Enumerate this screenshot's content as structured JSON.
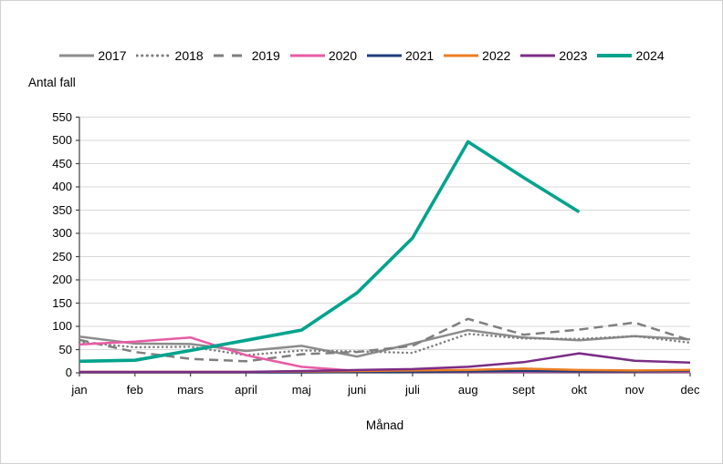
{
  "page": {
    "background_color": "#ffffff",
    "border_color": "#d2d2d2"
  },
  "chart_data": {
    "type": "line",
    "title": "",
    "ylabel": "Antal fall",
    "xlabel": "Månad",
    "ylim": [
      0,
      550
    ],
    "ytick_step": 50,
    "yticks": [
      0,
      50,
      100,
      150,
      200,
      250,
      300,
      350,
      400,
      450,
      500,
      550
    ],
    "categories": [
      "jan",
      "feb",
      "mars",
      "april",
      "maj",
      "juni",
      "juli",
      "aug",
      "sept",
      "okt",
      "nov",
      "dec"
    ],
    "grid": "horizontal",
    "gridline_color": "#d9d9d9",
    "axis_color": "#404040",
    "legend_position": "top",
    "series": [
      {
        "name": "2017",
        "color": "#8c8c8c",
        "style": "solid",
        "width": 2.5,
        "values": [
          78,
          63,
          62,
          47,
          58,
          35,
          63,
          92,
          76,
          70,
          79,
          72
        ]
      },
      {
        "name": "2018",
        "color": "#7f7f7f",
        "style": "dotted",
        "width": 2.5,
        "values": [
          66,
          55,
          56,
          38,
          48,
          46,
          43,
          84,
          74,
          73,
          79,
          65
        ]
      },
      {
        "name": "2019",
        "color": "#7f7f7f",
        "style": "dashed",
        "width": 2.5,
        "values": [
          71,
          45,
          30,
          25,
          40,
          45,
          58,
          116,
          82,
          93,
          108,
          70
        ]
      },
      {
        "name": "2020",
        "color": "#e85ba5",
        "style": "solid",
        "width": 2.5,
        "values": [
          61,
          67,
          76,
          38,
          13,
          4,
          2,
          2,
          2,
          2,
          2,
          2
        ]
      },
      {
        "name": "2021",
        "color": "#1f3d7a",
        "style": "solid",
        "width": 2.5,
        "values": [
          1,
          1,
          1,
          1,
          1,
          2,
          2,
          3,
          4,
          3,
          3,
          4
        ]
      },
      {
        "name": "2022",
        "color": "#ed7d23",
        "style": "solid",
        "width": 2.5,
        "values": [
          2,
          2,
          2,
          2,
          3,
          4,
          5,
          6,
          9,
          6,
          5,
          6
        ]
      },
      {
        "name": "2023",
        "color": "#7b2d86",
        "style": "solid",
        "width": 2.5,
        "values": [
          2,
          2,
          2,
          2,
          4,
          6,
          8,
          13,
          23,
          42,
          26,
          22
        ]
      },
      {
        "name": "2024",
        "color": "#00a38c",
        "style": "solid",
        "width": 3.6,
        "values": [
          25,
          27,
          48,
          70,
          92,
          172,
          290,
          497,
          420,
          346,
          null,
          null
        ]
      }
    ]
  }
}
